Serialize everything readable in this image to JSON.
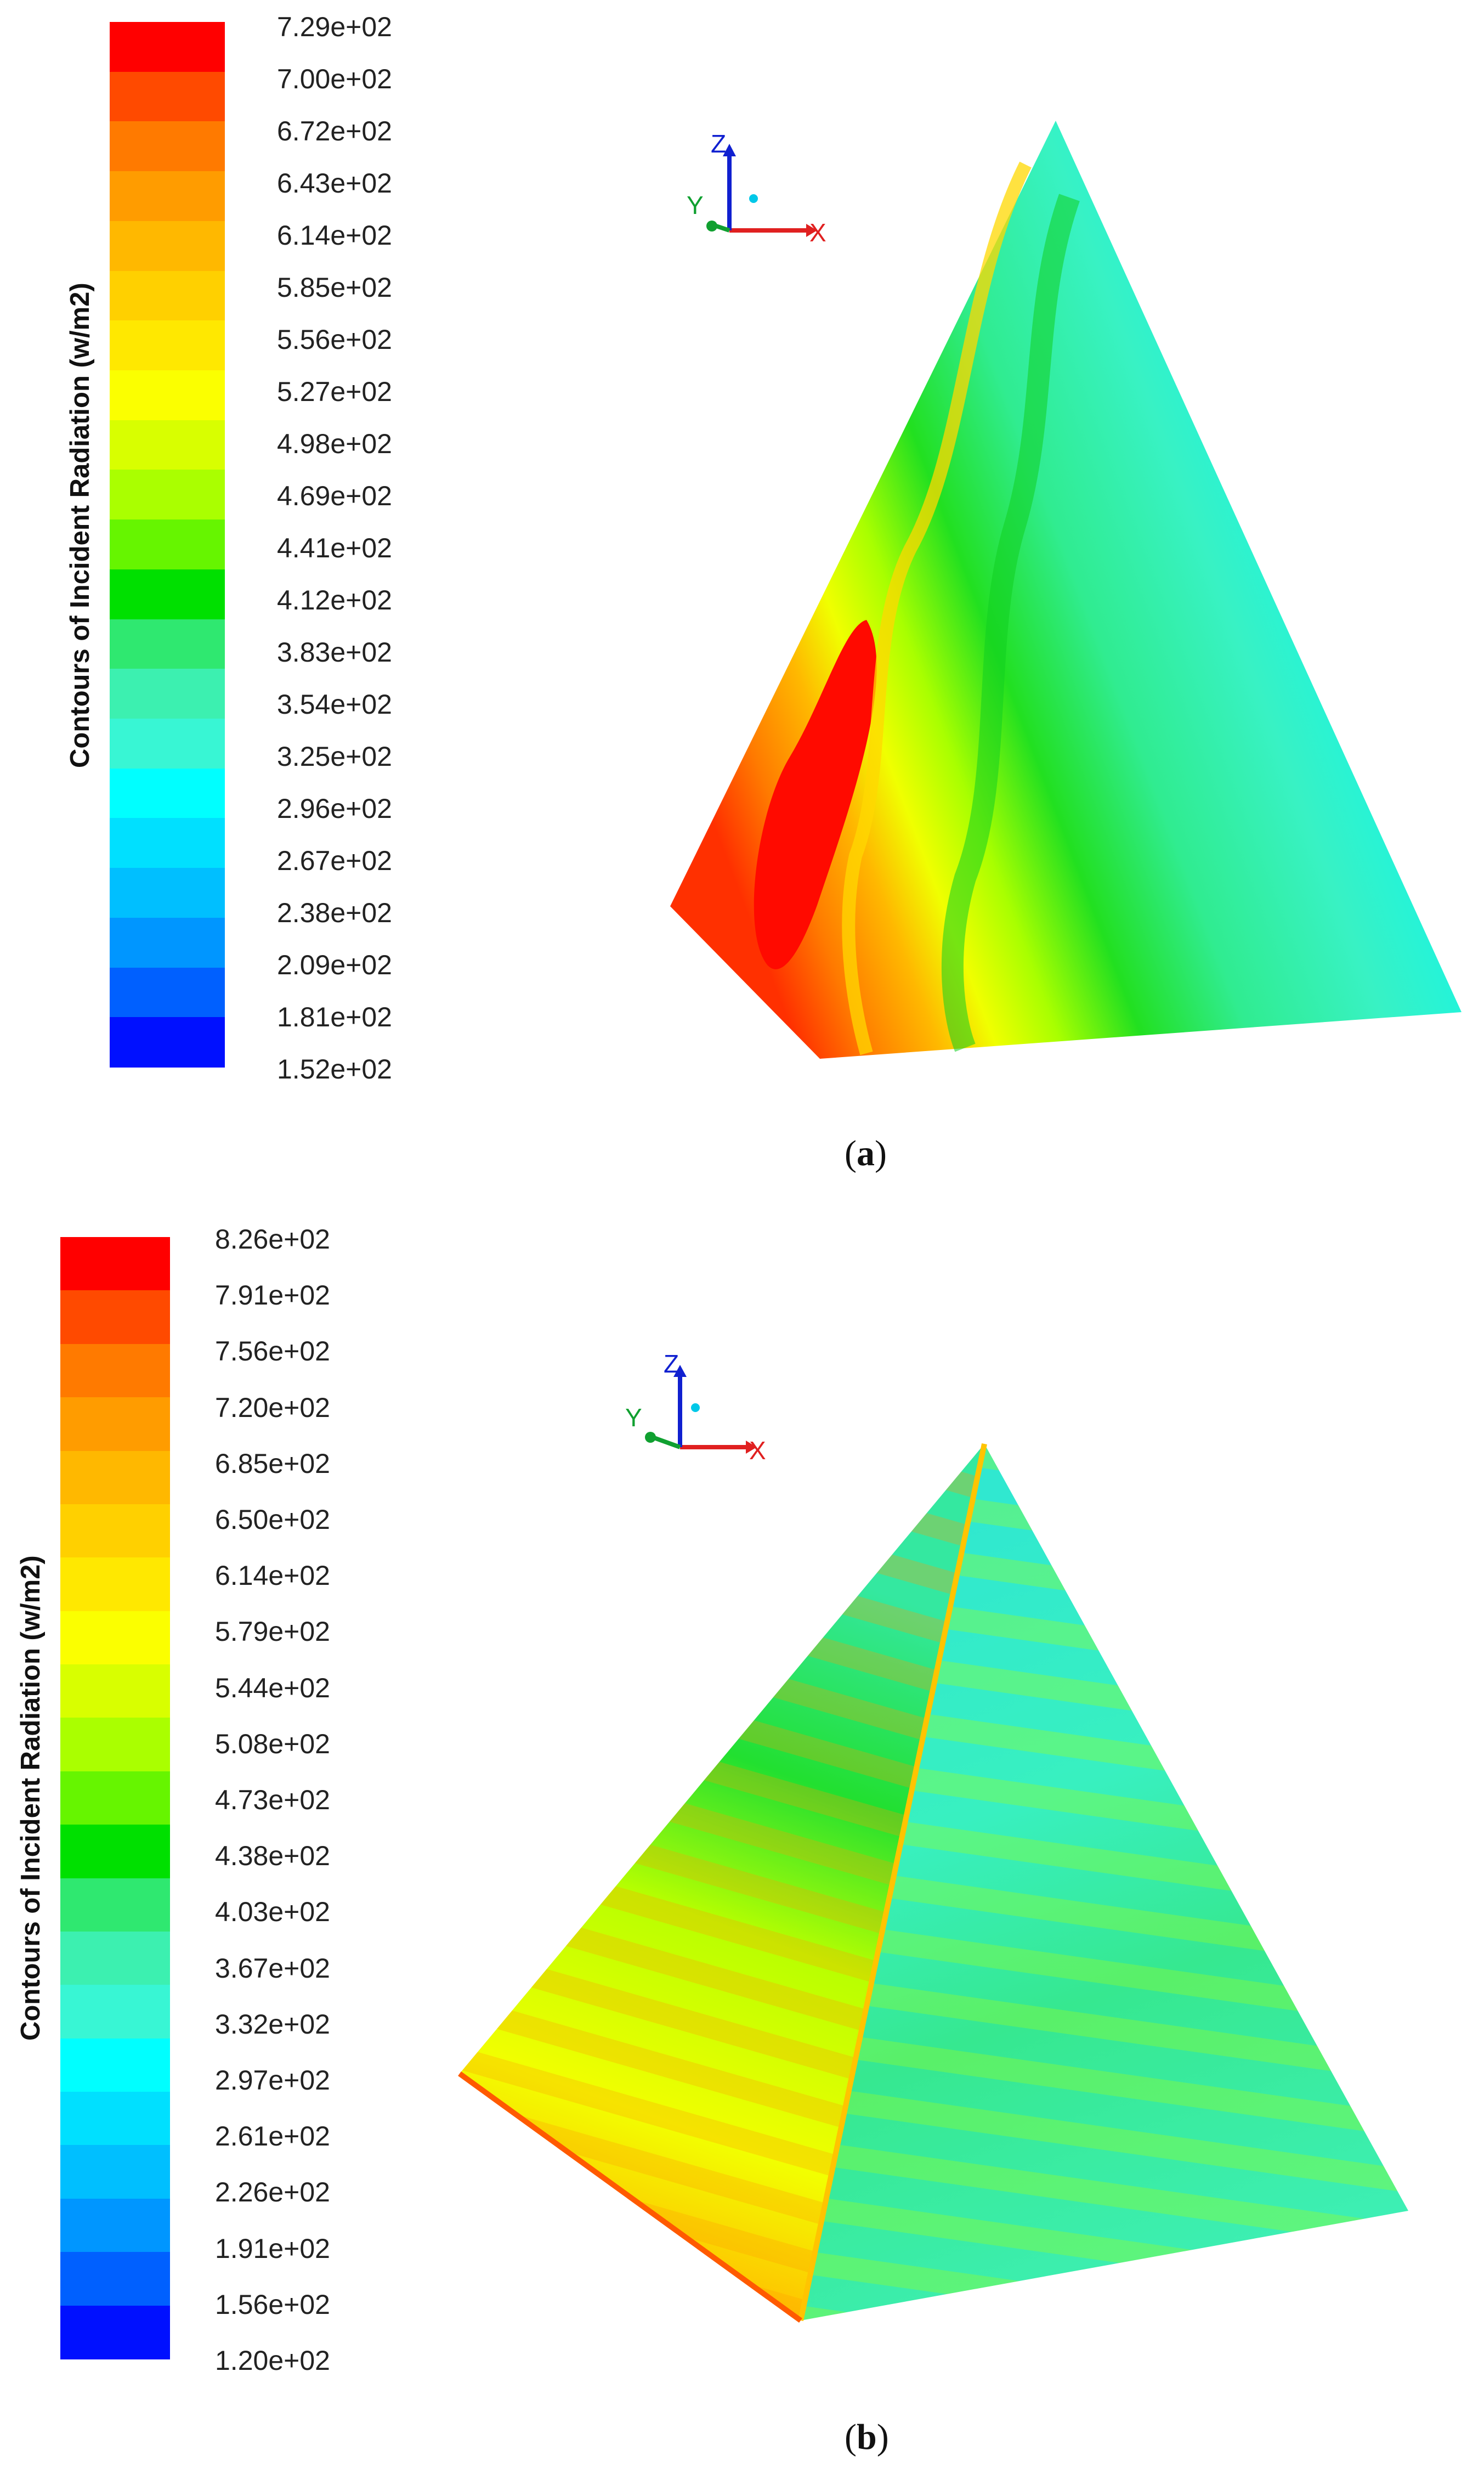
{
  "panels": [
    {
      "id": "a",
      "caption_open": "(",
      "caption_letter": "a",
      "caption_close": ")",
      "colorbar_title": "Contours of Incident Radiation (w/m2)",
      "tick_labels": [
        "7.29e+02",
        "7.00e+02",
        "6.72e+02",
        "6.43e+02",
        "6.14e+02",
        "5.85e+02",
        "5.56e+02",
        "5.27e+02",
        "4.98e+02",
        "4.69e+02",
        "4.41e+02",
        "4.12e+02",
        "3.83e+02",
        "3.54e+02",
        "3.25e+02",
        "2.96e+02",
        "2.67e+02",
        "2.38e+02",
        "2.09e+02",
        "1.81e+02",
        "1.52e+02"
      ],
      "axes_labels": {
        "x": "X",
        "y": "Y",
        "z": "Z"
      }
    },
    {
      "id": "b",
      "caption_open": "(",
      "caption_letter": "b",
      "caption_close": ")",
      "colorbar_title": "Contours of Incident Radiation (w/m2)",
      "tick_labels": [
        "8.26e+02",
        "7.91e+02",
        "7.56e+02",
        "7.20e+02",
        "6.85e+02",
        "6.50e+02",
        "6.14e+02",
        "5.79e+02",
        "5.44e+02",
        "5.08e+02",
        "4.73e+02",
        "4.38e+02",
        "4.03e+02",
        "3.67e+02",
        "3.32e+02",
        "2.97e+02",
        "2.61e+02",
        "2.26e+02",
        "1.91e+02",
        "1.56e+02",
        "1.20e+02"
      ],
      "axes_labels": {
        "x": "X",
        "y": "Y",
        "z": "Z"
      }
    }
  ],
  "colormap": [
    "#ff0000",
    "#ff4a00",
    "#ff7a00",
    "#ff9c00",
    "#ffb800",
    "#ffd000",
    "#ffe800",
    "#fbff00",
    "#d8ff00",
    "#aaff00",
    "#66f500",
    "#00e000",
    "#2fe870",
    "#3cf0b0",
    "#38f6d4",
    "#00ffff",
    "#00e0ff",
    "#00bfff",
    "#0096ff",
    "#0060ff",
    "#0010ff"
  ],
  "axis_colors": {
    "x": "#e02020",
    "y": "#10a030",
    "z": "#1020d0",
    "marker": "#00c8e8"
  },
  "icons": {
    "axis_triad": "xyz-axis-triad-icon"
  }
}
